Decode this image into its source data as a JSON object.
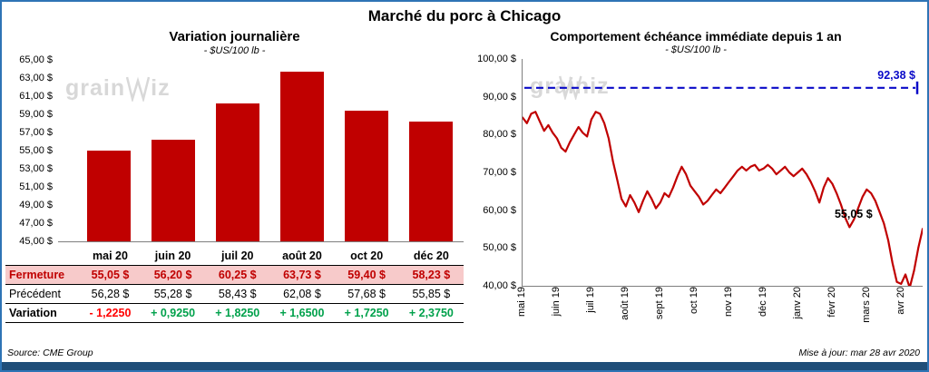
{
  "title": "Marché du porc à Chicago",
  "watermark": {
    "part1": "grain",
    "part2": "iz"
  },
  "left": {
    "title": "Variation journalière",
    "subtitle": "- $US/100 lb -",
    "table": {
      "columns": [
        "mai 20",
        "juin 20",
        "juil 20",
        "août 20",
        "oct 20",
        "déc 20"
      ],
      "rows": [
        {
          "label": "Fermeture",
          "style": "fermeture",
          "values": [
            "55,05 $",
            "56,20 $",
            "60,25 $",
            "63,73 $",
            "59,40 $",
            "58,23 $"
          ]
        },
        {
          "label": "Précédent",
          "style": "precedent",
          "values": [
            "56,28 $",
            "55,28 $",
            "58,43 $",
            "62,08 $",
            "57,68 $",
            "55,85 $"
          ]
        },
        {
          "label": "Variation",
          "style": "variation",
          "values": [
            "- 1,2250",
            "+ 0,9250",
            "+ 1,8250",
            "+ 1,6500",
            "+ 1,7250",
            "+ 2,3750"
          ]
        }
      ]
    }
  },
  "right": {
    "title": "Comportement échéance immédiate depuis 1 an",
    "subtitle": "- $US/100 lb -",
    "ref_label": "92,38 $",
    "last_label": "55,05 $"
  },
  "footer": {
    "source": "Source: CME Group",
    "updated": "Mise à jour: mar 28 avr 2020"
  },
  "chart_data": [
    {
      "type": "bar",
      "title": "Variation journalière",
      "subtitle": "- $US/100 lb -",
      "categories": [
        "mai 20",
        "juin 20",
        "juil 20",
        "août 20",
        "oct 20",
        "déc 20"
      ],
      "values": [
        55.05,
        56.2,
        60.25,
        63.73,
        59.4,
        58.23
      ],
      "ylim": [
        45,
        65
      ],
      "ytick": 2,
      "bar_color": "#C00000",
      "grid": false
    },
    {
      "type": "line",
      "title": "Comportement échéance immédiate depuis 1 an",
      "subtitle": "- $US/100 lb -",
      "x_categories": [
        "mai 19",
        "juin 19",
        "juil 19",
        "août 19",
        "sept 19",
        "oct 19",
        "nov 19",
        "déc 19",
        "janv 20",
        "févr 20",
        "mars 20",
        "avr 20"
      ],
      "points_per_month": 8,
      "values": [
        84.5,
        83,
        85.5,
        86,
        83.5,
        81,
        82.5,
        80.5,
        79,
        76.5,
        75.5,
        78,
        80,
        82,
        80.5,
        79.5,
        84,
        86,
        85.5,
        83,
        79,
        73,
        68,
        63,
        61,
        64,
        62,
        59.5,
        62.5,
        65,
        63,
        60.5,
        62,
        64.5,
        63.5,
        66,
        69,
        71.5,
        69.5,
        66.5,
        65,
        63.5,
        61.5,
        62.5,
        64,
        65.5,
        64.5,
        66,
        67.5,
        69,
        70.5,
        71.5,
        70.5,
        71.5,
        72,
        70.5,
        71,
        72,
        71,
        69.5,
        70.5,
        71.5,
        70,
        69,
        70,
        71,
        69.5,
        67.5,
        65,
        62,
        66,
        68.5,
        67,
        64.5,
        61.5,
        58,
        55.5,
        57.5,
        60.5,
        63.5,
        65.5,
        64.5,
        62.5,
        59.5,
        56.5,
        52,
        46,
        41,
        40.5,
        43,
        39.5,
        44,
        50,
        55.05
      ],
      "ylim": [
        40,
        100
      ],
      "ytick": 10,
      "line_color": "#C00000",
      "reference_line": {
        "value": 92.38,
        "label": "92,38 $",
        "color": "#0A0AC8",
        "style": "dashed"
      },
      "end_value": 55.05,
      "end_label": "55,05 $",
      "grid": false
    }
  ]
}
